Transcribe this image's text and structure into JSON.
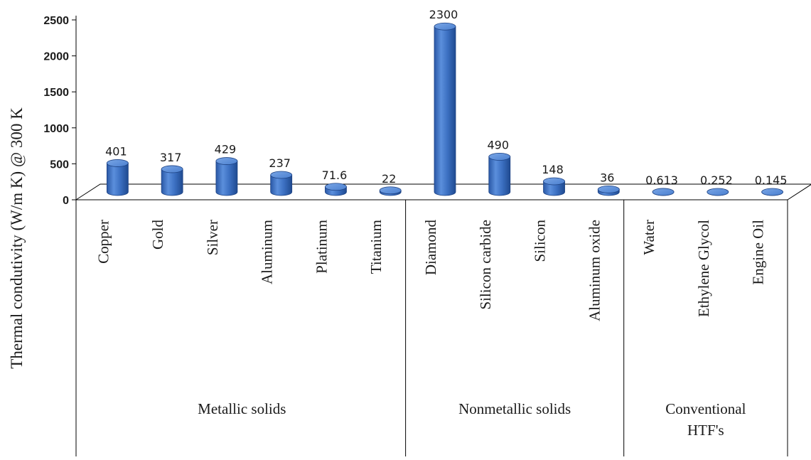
{
  "chart_data": {
    "type": "bar",
    "title": "",
    "xlabel": "",
    "ylabel": "Thermal condutivity (W/m K) @ 300 K",
    "ylim": [
      0,
      2500
    ],
    "yticks": [
      0,
      500,
      1000,
      1500,
      2000,
      2500
    ],
    "ytick_labels": [
      "0",
      "500",
      "1000",
      "1500",
      "2000",
      "2500"
    ],
    "grid": false,
    "legend": "none",
    "style": "3d-cylinder",
    "bar_color": "#3a6fbf",
    "categories": [
      "Copper",
      "Gold",
      "Silver",
      "Aluminum",
      "Platinum",
      "Titanium",
      "Diamond",
      "Silicon carbide",
      "Silicon",
      "Aluminum oxide",
      "Water",
      "Ethylene Glycol",
      "Engine Oil"
    ],
    "values": [
      401,
      317,
      429,
      237,
      71.6,
      22,
      2300,
      490,
      148,
      36,
      0.613,
      0.252,
      0.145
    ],
    "data_labels": [
      "401",
      "317",
      "429",
      "237",
      "71.6",
      "22",
      "2300",
      "490",
      "148",
      "36",
      "0.613",
      "0.252",
      "0.145"
    ],
    "groups": [
      {
        "label_lines": [
          "Metallic solids"
        ],
        "count": 6
      },
      {
        "label_lines": [
          "Nonmetallic solids"
        ],
        "count": 4
      },
      {
        "label_lines": [
          "Conventional",
          "HTF's"
        ],
        "count": 3
      }
    ]
  }
}
